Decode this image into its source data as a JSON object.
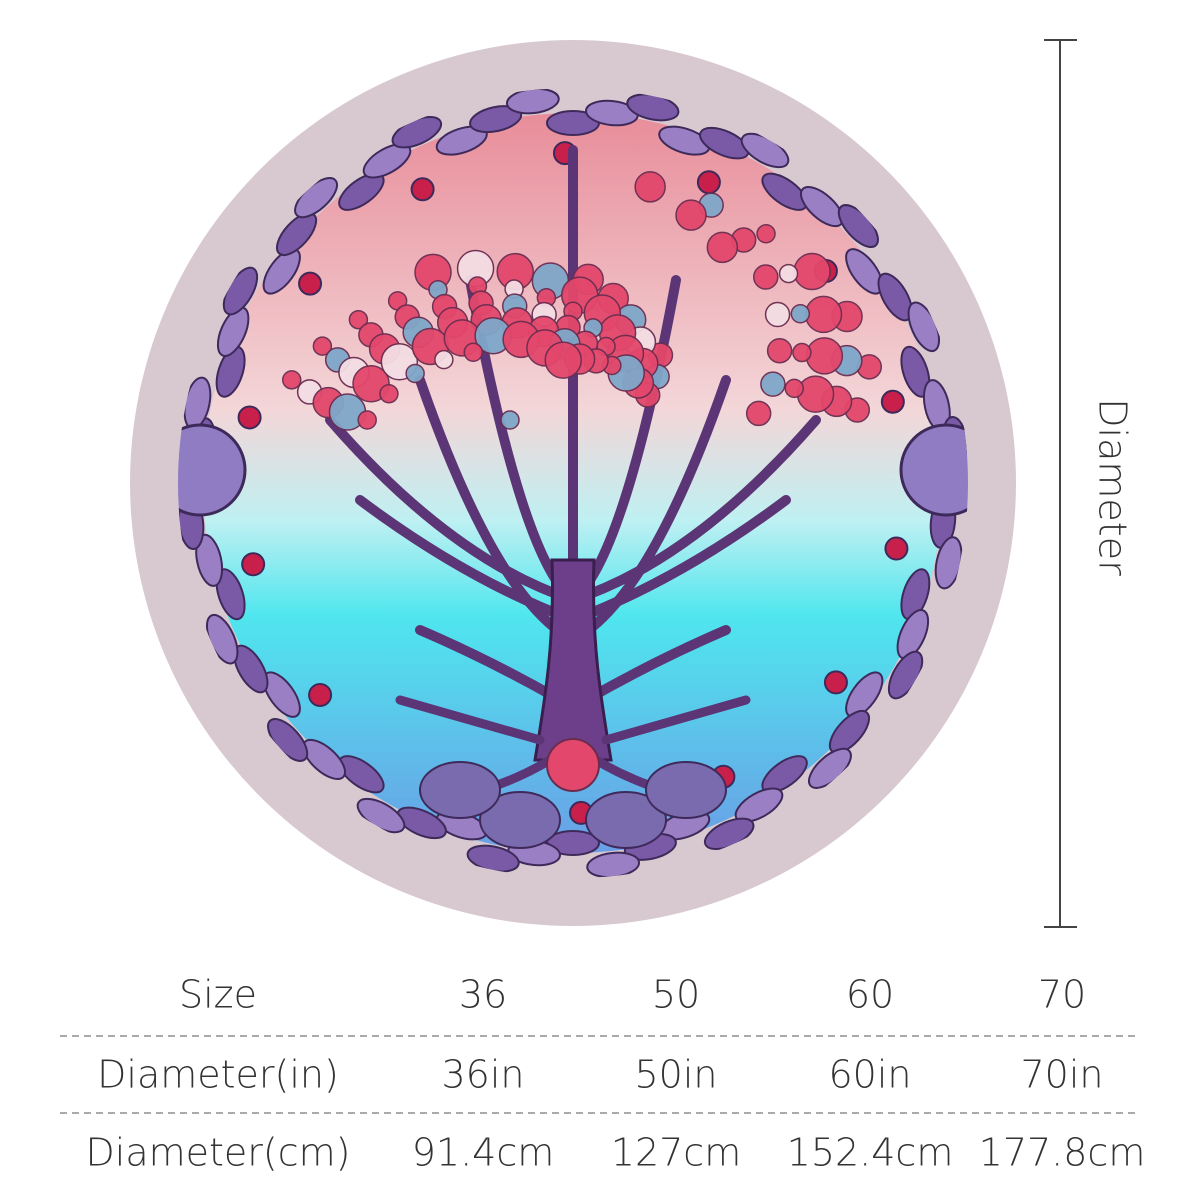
{
  "dimension": {
    "label": "Diameter"
  },
  "table": {
    "rows": [
      [
        "Size",
        "36",
        "50",
        "60",
        "70"
      ],
      [
        "Diameter(in)",
        "36in",
        "50in",
        "60in",
        "70in"
      ],
      [
        "Diameter(cm)",
        "91.4cm",
        "127cm",
        "152.4cm",
        "177.8cm"
      ]
    ]
  }
}
